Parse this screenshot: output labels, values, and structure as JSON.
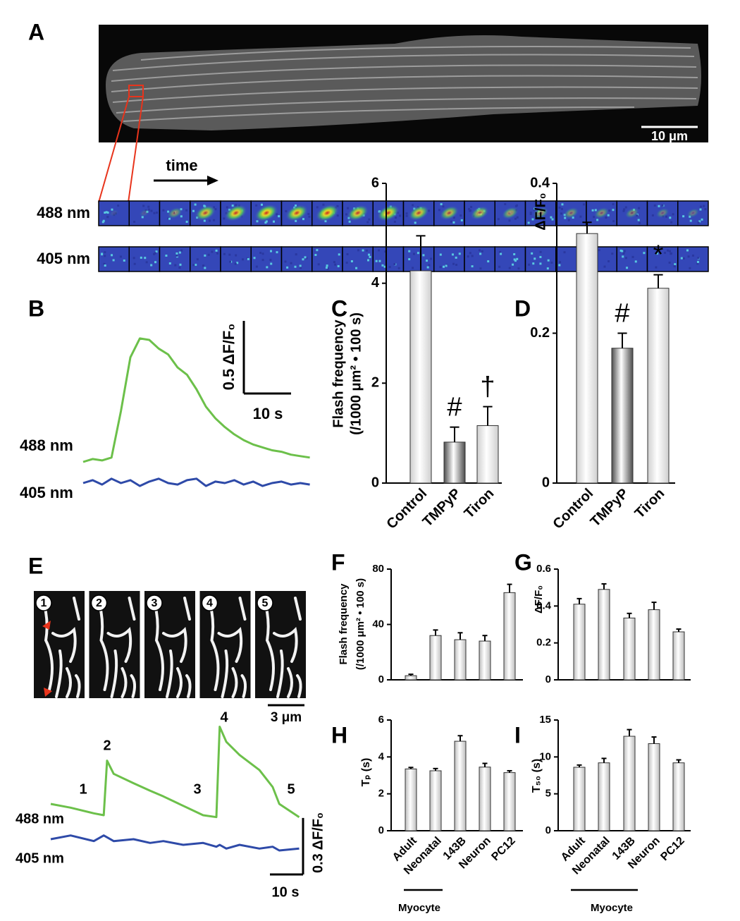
{
  "figure": {
    "panel_a": {
      "label": "A",
      "scale_bar": "10 μm",
      "time_label": "time",
      "channels": [
        "488 nm",
        "405 nm"
      ]
    },
    "panel_e": {
      "label": "E",
      "frames": [
        "1",
        "2",
        "3",
        "4",
        "5"
      ],
      "scale_bar": "3 μm"
    }
  },
  "chart_data": [
    {
      "type": "line",
      "panel": "B",
      "x": [
        0,
        2,
        4,
        6,
        8,
        10,
        12,
        14,
        16,
        18,
        20,
        22,
        24,
        26,
        28,
        30,
        32,
        34,
        36,
        38,
        40,
        42,
        44,
        46,
        48
      ],
      "series": [
        {
          "name": "488 nm",
          "color": "#6cc04a",
          "values": [
            0,
            0.02,
            0.01,
            0.03,
            0.35,
            0.72,
            0.85,
            0.84,
            0.78,
            0.74,
            0.65,
            0.6,
            0.5,
            0.38,
            0.3,
            0.24,
            0.19,
            0.15,
            0.12,
            0.1,
            0.08,
            0.07,
            0.05,
            0.04,
            0.03
          ]
        },
        {
          "name": "405 nm",
          "color": "#2e4aa8",
          "values": [
            0,
            0.02,
            -0.01,
            0.03,
            0,
            0.02,
            -0.02,
            0.01,
            0.03,
            0,
            -0.01,
            0.02,
            0.03,
            -0.02,
            0.01,
            0,
            0.02,
            -0.01,
            0.01,
            -0.02,
            0,
            0.01,
            -0.01,
            0,
            -0.01
          ]
        }
      ],
      "scale_bars": {
        "y": {
          "value": 0.5,
          "label": "0.5 ΔF/F₀"
        },
        "x": {
          "value": 10,
          "label": "10 s"
        }
      }
    },
    {
      "type": "bar",
      "panel": "C",
      "categories": [
        "Control",
        "TMPyP",
        "Tiron"
      ],
      "values": [
        4.25,
        0.82,
        1.15
      ],
      "errors": [
        0.7,
        0.3,
        0.38
      ],
      "colors": [
        "#cfcfcf",
        "#4d4d4d",
        "#cfcfcf"
      ],
      "annotations": [
        null,
        "#",
        "†"
      ],
      "ylabel": [
        "Flash frequency",
        "(/1000 μm² • 100 s)"
      ],
      "ylim": [
        0,
        6
      ],
      "yticks": [
        0,
        2,
        4,
        6
      ]
    },
    {
      "type": "bar",
      "panel": "D",
      "categories": [
        "Control",
        "TMPyP",
        "Tiron"
      ],
      "values": [
        0.333,
        0.18,
        0.26
      ],
      "errors": [
        0.015,
        0.02,
        0.018
      ],
      "colors": [
        "#cfcfcf",
        "#4d4d4d",
        "#cfcfcf"
      ],
      "annotations": [
        null,
        "#",
        "*"
      ],
      "ylabel": [
        "ΔF/F₀"
      ],
      "ylim": [
        0,
        0.4
      ],
      "yticks": [
        0,
        0.2,
        0.4
      ]
    },
    {
      "type": "line",
      "panel": null,
      "x": [
        0,
        6,
        13,
        16,
        17,
        19,
        25,
        30,
        34,
        40,
        46,
        50,
        51,
        53,
        57,
        63,
        67,
        69,
        75
      ],
      "series": [
        {
          "name": "488 nm",
          "color": "#6cc04a",
          "values": [
            0,
            -0.02,
            -0.05,
            -0.06,
            0.23,
            0.16,
            0.11,
            0.07,
            0.04,
            -0.01,
            -0.06,
            -0.07,
            0.41,
            0.33,
            0.26,
            0.18,
            0.09,
            0,
            -0.07
          ]
        },
        {
          "name": "405 nm",
          "color": "#2e4aa8",
          "values": [
            0,
            0.02,
            -0.01,
            0.02,
            0.01,
            -0.01,
            0,
            -0.02,
            -0.01,
            -0.03,
            -0.02,
            -0.04,
            -0.03,
            -0.05,
            -0.03,
            -0.05,
            -0.04,
            -0.06,
            -0.05
          ]
        }
      ],
      "annotations": [
        "1",
        "2",
        "3",
        "4",
        "5"
      ],
      "scale_bars": {
        "y": {
          "value": 0.3,
          "label": "0.3 ΔF/F₀"
        },
        "x": {
          "value": 10,
          "label": "10 s"
        }
      }
    },
    {
      "type": "bar",
      "panel": "F",
      "categories": [
        null,
        null,
        null,
        null,
        null
      ],
      "values": [
        3,
        32,
        29,
        28,
        63
      ],
      "errors": [
        1,
        4,
        5,
        4,
        6
      ],
      "colors": [
        "#bdbdbd",
        "#bdbdbd",
        "#bdbdbd",
        "#bdbdbd",
        "#bdbdbd"
      ],
      "ylabel": [
        "Flash frequency",
        "(/1000 μm² • 100 s)"
      ],
      "ylim": [
        0,
        80
      ],
      "yticks": [
        0,
        40,
        80
      ]
    },
    {
      "type": "bar",
      "panel": "G",
      "categories": [
        null,
        null,
        null,
        null,
        null
      ],
      "values": [
        0.41,
        0.49,
        0.335,
        0.38,
        0.26
      ],
      "errors": [
        0.03,
        0.03,
        0.025,
        0.04,
        0.015
      ],
      "colors": [
        "#bdbdbd",
        "#bdbdbd",
        "#bdbdbd",
        "#bdbdbd",
        "#bdbdbd"
      ],
      "ylabel": [
        "ΔF/F₀"
      ],
      "ylim": [
        0,
        0.6
      ],
      "yticks": [
        0,
        0.2,
        0.4,
        0.6
      ]
    },
    {
      "type": "bar",
      "panel": "H",
      "categories": [
        "Adult",
        "Neonatal",
        "143B",
        "Neuron",
        "PC12"
      ],
      "values": [
        3.35,
        3.25,
        4.85,
        3.45,
        3.15
      ],
      "errors": [
        0.08,
        0.12,
        0.3,
        0.2,
        0.1
      ],
      "colors": [
        "#bdbdbd",
        "#bdbdbd",
        "#bdbdbd",
        "#bdbdbd",
        "#bdbdbd"
      ],
      "ylabel": [
        "Tₚ (s)"
      ],
      "group_label": "Myocyte",
      "ylim": [
        0,
        6
      ],
      "yticks": [
        0,
        2,
        4,
        6
      ]
    },
    {
      "type": "bar",
      "panel": "I",
      "categories": [
        "Adult",
        "Neonatal",
        "143B",
        "Neuron",
        "PC12"
      ],
      "values": [
        8.6,
        9.2,
        12.8,
        11.8,
        9.2
      ],
      "errors": [
        0.3,
        0.6,
        0.9,
        0.9,
        0.4
      ],
      "colors": [
        "#bdbdbd",
        "#bdbdbd",
        "#bdbdbd",
        "#bdbdbd",
        "#bdbdbd"
      ],
      "ylabel": [
        "T₅₀ (s)"
      ],
      "group_label": "Myocyte",
      "ylim": [
        0,
        15
      ],
      "yticks": [
        0,
        5,
        10,
        15
      ]
    }
  ]
}
